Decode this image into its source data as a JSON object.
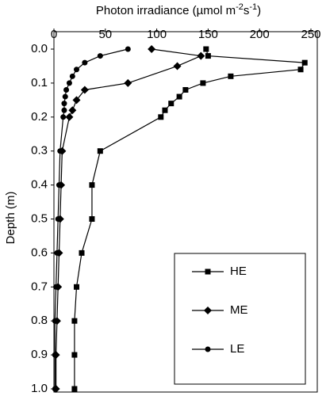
{
  "chart_data": {
    "type": "line",
    "x_label_parts": [
      "Photon irradiance (µmol  m",
      "-2",
      "s",
      "-1",
      ")"
    ],
    "y_label": "Depth (m)",
    "xlim": [
      0,
      250
    ],
    "xticks": [
      0,
      50,
      100,
      150,
      200,
      250
    ],
    "ylim": [
      0,
      1
    ],
    "y_inverted": true,
    "yticks": [
      {
        "value": 0,
        "label": "0.0"
      },
      0.1,
      0.2,
      0.3,
      0.4,
      0.5,
      0.6,
      0.7,
      0.8,
      0.9,
      {
        "value": 1,
        "label": "1.0"
      }
    ],
    "legend": "lower right",
    "series": [
      {
        "name": "HE",
        "color": "#000000",
        "marker": "square",
        "x": [
          148,
          150,
          244,
          240,
          172,
          145,
          128,
          122,
          114,
          108,
          104,
          45,
          37,
          37,
          27,
          22,
          20,
          20,
          20
        ],
        "values": [
          0,
          0.02,
          0.04,
          0.06,
          0.08,
          0.1,
          0.12,
          0.14,
          0.16,
          0.18,
          0.2,
          0.3,
          0.4,
          0.5,
          0.6,
          0.7,
          0.8,
          0.9,
          1.0
        ]
      },
      {
        "name": "ME",
        "color": "#000000",
        "marker": "diamond",
        "x": [
          95,
          143,
          120,
          72,
          30,
          22,
          18,
          15,
          8,
          7,
          6,
          5,
          4,
          3,
          2,
          2
        ],
        "values": [
          0,
          0.02,
          0.05,
          0.1,
          0.12,
          0.15,
          0.18,
          0.2,
          0.3,
          0.4,
          0.5,
          0.6,
          0.7,
          0.8,
          0.9,
          1.0
        ]
      },
      {
        "name": "LE",
        "color": "#000000",
        "marker": "circle",
        "x": [
          72,
          45,
          30,
          22,
          18,
          15,
          12,
          11,
          10,
          10,
          9,
          6,
          5,
          4,
          3,
          2,
          1,
          1,
          1
        ],
        "values": [
          0,
          0.02,
          0.04,
          0.06,
          0.08,
          0.1,
          0.12,
          0.14,
          0.16,
          0.18,
          0.2,
          0.3,
          0.4,
          0.5,
          0.6,
          0.7,
          0.8,
          0.9,
          1.0
        ]
      }
    ]
  }
}
